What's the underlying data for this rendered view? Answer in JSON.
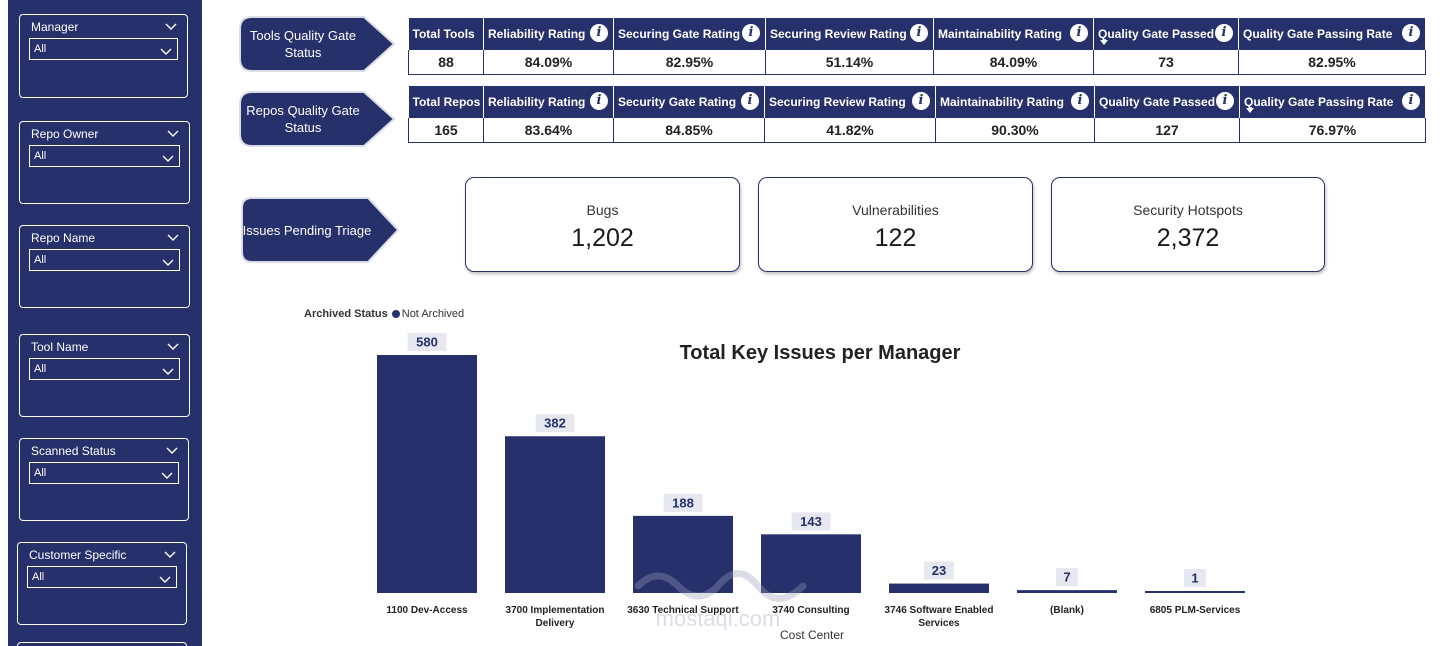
{
  "colors": {
    "navy": "#26306b",
    "white": "#ffffff",
    "text": "#222222"
  },
  "slicers": [
    {
      "title": "Manager",
      "value": "All"
    },
    {
      "title": "Repo Owner",
      "value": "All"
    },
    {
      "title": "Repo Name",
      "value": "All"
    },
    {
      "title": "Tool Name",
      "value": "All"
    },
    {
      "title": "Scanned Status",
      "value": "All"
    },
    {
      "title": "Customer Specific",
      "value": "All"
    }
  ],
  "section_labels": {
    "tools": "Tools Quality Gate Status",
    "repos": "Repos Quality Gate Status",
    "issues": "Issues Pending Triage"
  },
  "tools_table": {
    "headers": [
      "Total Tools",
      "Reliability Rating",
      "Securing Gate Rating",
      "Securing Review Rating",
      "Maintainability Rating",
      "Quality Gate Passed",
      "Quality Gate Passing Rate"
    ],
    "values": [
      "88",
      "84.09%",
      "82.95%",
      "51.14%",
      "84.09%",
      "73",
      "82.95%"
    ]
  },
  "repos_table": {
    "headers": [
      "Total Repos",
      "Reliability Rating",
      "Security Gate Rating",
      "Securing Review Rating",
      "Maintainability Rating",
      "Quality Gate Passed",
      "Quality Gate Passing Rate"
    ],
    "values": [
      "165",
      "83.64%",
      "84.85%",
      "41.82%",
      "90.30%",
      "127",
      "76.97%"
    ]
  },
  "cards": [
    {
      "label": "Bugs",
      "value": "1,202"
    },
    {
      "label": "Vulnerabilities",
      "value": "122"
    },
    {
      "label": "Security Hotspots",
      "value": "2,372"
    }
  ],
  "legend": {
    "title": "Archived Status",
    "item": "Not Archived"
  },
  "watermark": {
    "text": "mostaqi.com"
  },
  "chart_data": {
    "type": "bar",
    "title": "Total Key Issues per Manager",
    "xlabel": "Cost Center",
    "ylabel": "",
    "categories": [
      "1100 Dev-Access",
      "3700 Implementation Delivery",
      "3630 Technical Support",
      "3740 Consulting",
      "3746 Software Enabled Services",
      "(Blank)",
      "6805 PLM-Services"
    ],
    "category_lines": [
      [
        "1100 Dev-Access"
      ],
      [
        "3700 Implementation",
        "Delivery"
      ],
      [
        "3630 Technical Support"
      ],
      [
        "3740 Consulting"
      ],
      [
        "3746 Software Enabled",
        "Services"
      ],
      [
        "(Blank)"
      ],
      [
        "6805 PLM-Services"
      ]
    ],
    "series": [
      {
        "name": "Not Archived",
        "values": [
          580,
          382,
          188,
          143,
          23,
          7,
          1
        ]
      }
    ],
    "ylim": [
      0,
      580
    ],
    "grid": false,
    "legend_position": "top-left"
  }
}
